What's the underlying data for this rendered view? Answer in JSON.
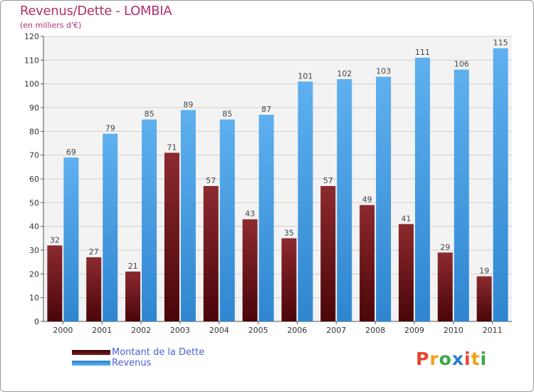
{
  "title": "Revenus/Dette - LOMBIA",
  "subtitle": "(en milliers d'€)",
  "logo_text": "Proxiti",
  "colors": {
    "title": "#b0306b",
    "dette": "#7a1a1f",
    "revenus": "#4ba3e8",
    "grid": "#d0d0d0",
    "plot_bg": "#f3f3f3",
    "legend_text": "#4a5fd8"
  },
  "chart_data": {
    "type": "bar",
    "title": "Revenus/Dette - LOMBIA",
    "subtitle": "(en milliers d'€)",
    "xlabel": "",
    "ylabel": "",
    "categories": [
      "2000",
      "2001",
      "2002",
      "2003",
      "2004",
      "2005",
      "2006",
      "2007",
      "2008",
      "2009",
      "2010",
      "2011"
    ],
    "series": [
      {
        "name": "Montant de la Dette",
        "values": [
          32,
          27,
          21,
          71,
          57,
          43,
          35,
          57,
          49,
          41,
          29,
          19
        ]
      },
      {
        "name": "Revenus",
        "values": [
          69,
          79,
          85,
          89,
          85,
          87,
          101,
          102,
          103,
          111,
          106,
          115
        ]
      }
    ],
    "ylim": [
      0,
      120
    ],
    "yticks": [
      0,
      10,
      20,
      30,
      40,
      50,
      60,
      70,
      80,
      90,
      100,
      110,
      120
    ],
    "grid": true,
    "legend_position": "bottom-left"
  }
}
